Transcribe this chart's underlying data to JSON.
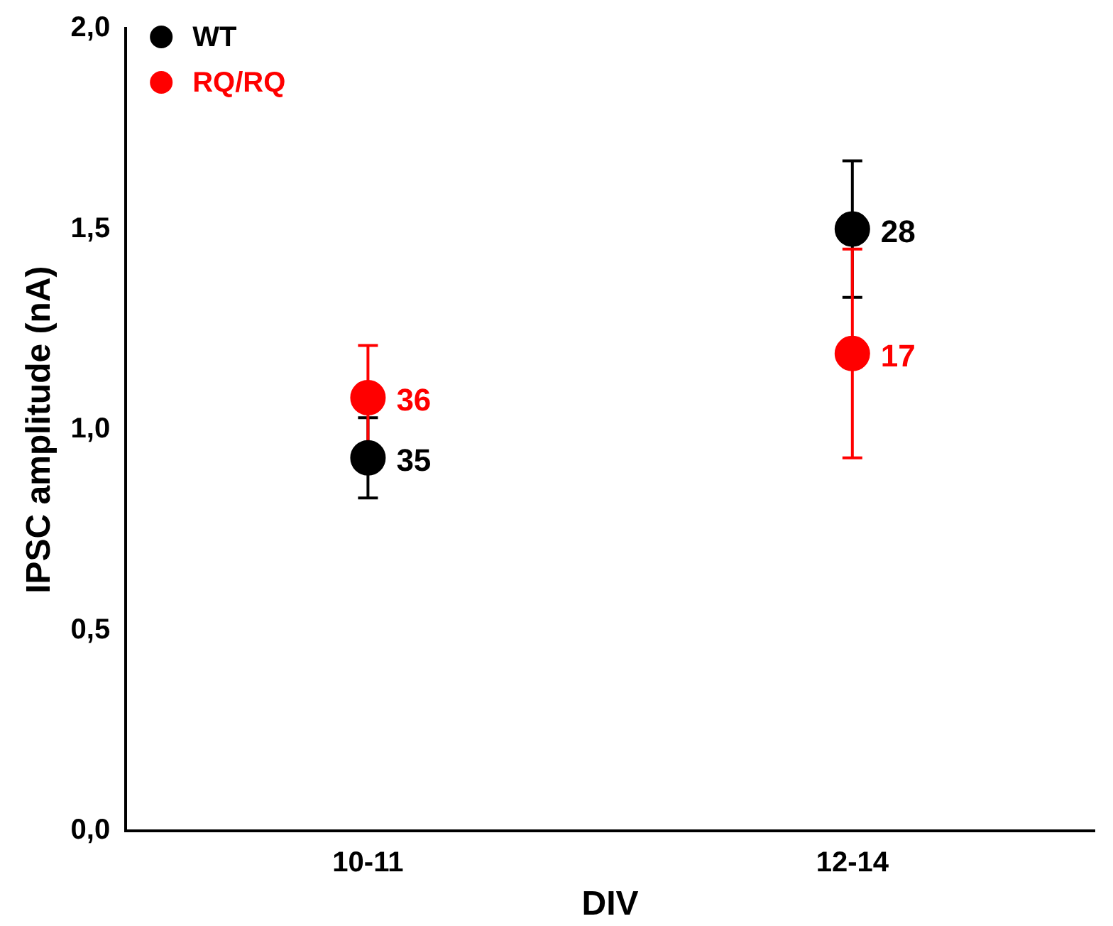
{
  "chart_data": {
    "type": "scatter",
    "xlabel": "DIV",
    "ylabel": "IPSC amplitude (nA)",
    "categories": [
      "10-11",
      "12-14"
    ],
    "series": [
      {
        "name": "WT",
        "color": "#000000",
        "values": [
          0.93,
          1.5
        ],
        "errors": [
          0.1,
          0.17
        ]
      },
      {
        "name": "RQ/RQ",
        "color": "#ff0000",
        "values": [
          1.08,
          1.19
        ],
        "errors": [
          0.13,
          0.26
        ]
      }
    ],
    "ylim": [
      0,
      2
    ],
    "yticks": [
      {
        "value": 0,
        "label": "0,0"
      },
      {
        "value": 0.5,
        "label": "0,5"
      },
      {
        "value": 1,
        "label": "1,0"
      },
      {
        "value": 1.5,
        "label": "1,5"
      },
      {
        "value": 2,
        "label": "2,0"
      }
    ],
    "annotations": [
      {
        "text": "35",
        "x": "10-11",
        "y": 0.93
      },
      {
        "text": "36",
        "x": "10-11",
        "y": 1.08
      },
      {
        "text": "28",
        "x": "12-14",
        "y": 1.5
      },
      {
        "text": "17",
        "x": "12-14",
        "y": 1.19
      }
    ],
    "grid": false,
    "legend": "top left",
    "marker": "circle"
  }
}
